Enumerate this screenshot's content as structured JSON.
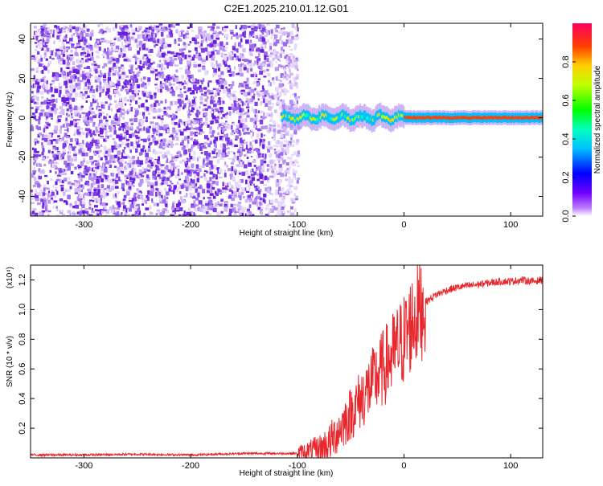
{
  "figure_title": "C2E1.2025.210.01.12.G01",
  "colors": {
    "snr_line": "#e8262b",
    "spectrogram_noise": "#6a1ee0",
    "axis": "#000000"
  },
  "chart_data": [
    {
      "type": "heatmap",
      "title": "C2E1.2025.210.01.12.G01",
      "xlabel": "Height of straight line (km)",
      "ylabel": "Frequency (Hz)",
      "xlim": [
        -350,
        130
      ],
      "ylim": [
        -50,
        48
      ],
      "x_ticks": [
        -300,
        -200,
        -100,
        0,
        100
      ],
      "y_ticks": [
        -40,
        -20,
        0,
        20,
        40
      ],
      "colorbar": {
        "label": "Normalized spectral amplitude",
        "range": [
          0,
          1
        ],
        "ticks": [
          0.0,
          0.2,
          0.4,
          0.6,
          0.8
        ],
        "colormap": "rainbow"
      },
      "description_points": {
        "noise_region_x": [
          -350,
          -110
        ],
        "signal_line_frequency_hz": 0,
        "signal_emerges_at_x": -110,
        "signal_strong_from_x": 0
      }
    },
    {
      "type": "line",
      "xlabel": "Height of straight line (km)",
      "ylabel": "SNR (10 * v/v)",
      "y_multiplier": "(x10⁴)",
      "xlim": [
        -350,
        130
      ],
      "ylim": [
        0,
        1.3
      ],
      "x_ticks": [
        -300,
        -200,
        -100,
        0,
        100
      ],
      "y_ticks": [
        0.2,
        0.4,
        0.6,
        0.8,
        1.0,
        1.2
      ],
      "series": [
        {
          "x": [
            -350,
            -300,
            -250,
            -200,
            -150,
            -120,
            -100,
            -90,
            -80,
            -70,
            -60,
            -50,
            -40,
            -30,
            -20,
            -10,
            0,
            10,
            20,
            30,
            40,
            50,
            60,
            70,
            80,
            90,
            100,
            110,
            120,
            130
          ],
          "y": [
            0.02,
            0.02,
            0.025,
            0.02,
            0.03,
            0.03,
            0.03,
            0.04,
            0.05,
            0.1,
            0.2,
            0.3,
            0.4,
            0.5,
            0.6,
            0.7,
            0.8,
            0.95,
            1.05,
            1.1,
            1.13,
            1.15,
            1.16,
            1.17,
            1.18,
            1.19,
            1.19,
            1.2,
            1.19,
            1.2
          ]
        }
      ]
    }
  ]
}
